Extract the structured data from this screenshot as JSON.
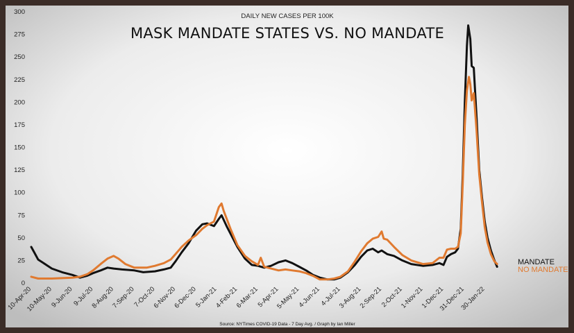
{
  "chart_data": {
    "type": "line",
    "subtitle": "DAILY NEW CASES PER 100K",
    "title": "MASK MANDATE STATES VS. NO MANDATE",
    "source": "Source: NYTimes COVID-19 Data - 7 Day Avg. / Graph by Ian Miller",
    "ylim": [
      0,
      300
    ],
    "yticks": [
      0,
      25,
      50,
      75,
      100,
      125,
      150,
      175,
      200,
      225,
      250,
      275,
      300
    ],
    "grid": false,
    "legend": "right, at end of lines",
    "x_tick_labels": [
      "10-Apr-20",
      "10-May-20",
      "9-Jun-20",
      "9-Jul-20",
      "8-Aug-20",
      "7-Sep-20",
      "7-Oct-20",
      "6-Nov-20",
      "6-Dec-20",
      "5-Jan-21",
      "4-Feb-21",
      "6-Mar-21",
      "5-Apr-21",
      "5-May-21",
      "4-Jun-21",
      "4-Jul-21",
      "3-Aug-21",
      "2-Sep-21",
      "2-Oct-21",
      "1-Nov-21",
      "1-Dec-21",
      "31-Dec-21",
      "30-Jan-22"
    ],
    "series": [
      {
        "name": "MANDATE",
        "color": "#111111",
        "points": [
          [
            "2020-04-10",
            40
          ],
          [
            "2020-04-15",
            33
          ],
          [
            "2020-04-20",
            26
          ],
          [
            "2020-04-28",
            22
          ],
          [
            "2020-05-10",
            16
          ],
          [
            "2020-05-25",
            12
          ],
          [
            "2020-06-09",
            9
          ],
          [
            "2020-06-20",
            6
          ],
          [
            "2020-06-30",
            8
          ],
          [
            "2020-07-09",
            11
          ],
          [
            "2020-07-20",
            14
          ],
          [
            "2020-07-30",
            17
          ],
          [
            "2020-08-08",
            16
          ],
          [
            "2020-08-20",
            15
          ],
          [
            "2020-09-07",
            14
          ],
          [
            "2020-09-20",
            12
          ],
          [
            "2020-10-07",
            13
          ],
          [
            "2020-10-20",
            15
          ],
          [
            "2020-10-30",
            17
          ],
          [
            "2020-11-06",
            24
          ],
          [
            "2020-11-15",
            34
          ],
          [
            "2020-11-25",
            44
          ],
          [
            "2020-12-06",
            58
          ],
          [
            "2020-12-15",
            65
          ],
          [
            "2020-12-22",
            66
          ],
          [
            "2021-01-01",
            63
          ],
          [
            "2021-01-08",
            71
          ],
          [
            "2021-01-12",
            75
          ],
          [
            "2021-01-20",
            62
          ],
          [
            "2021-02-04",
            40
          ],
          [
            "2021-02-15",
            27
          ],
          [
            "2021-02-25",
            20
          ],
          [
            "2021-03-06",
            19
          ],
          [
            "2021-03-15",
            17
          ],
          [
            "2021-03-25",
            19
          ],
          [
            "2021-04-05",
            23
          ],
          [
            "2021-04-15",
            25
          ],
          [
            "2021-04-25",
            22
          ],
          [
            "2021-05-05",
            18
          ],
          [
            "2021-05-15",
            14
          ],
          [
            "2021-05-25",
            9
          ],
          [
            "2021-06-04",
            6
          ],
          [
            "2021-06-15",
            4
          ],
          [
            "2021-06-25",
            4
          ],
          [
            "2021-07-04",
            6
          ],
          [
            "2021-07-15",
            12
          ],
          [
            "2021-07-25",
            20
          ],
          [
            "2021-08-03",
            29
          ],
          [
            "2021-08-12",
            36
          ],
          [
            "2021-08-20",
            38
          ],
          [
            "2021-08-28",
            34
          ],
          [
            "2021-09-02",
            36
          ],
          [
            "2021-09-10",
            32
          ],
          [
            "2021-09-20",
            30
          ],
          [
            "2021-10-02",
            25
          ],
          [
            "2021-10-15",
            21
          ],
          [
            "2021-11-01",
            19
          ],
          [
            "2021-11-15",
            20
          ],
          [
            "2021-11-25",
            22
          ],
          [
            "2021-12-01",
            20
          ],
          [
            "2021-12-06",
            29
          ],
          [
            "2021-12-12",
            32
          ],
          [
            "2021-12-18",
            34
          ],
          [
            "2021-12-22",
            38
          ],
          [
            "2021-12-26",
            60
          ],
          [
            "2021-12-29",
            120
          ],
          [
            "2022-01-01",
            200
          ],
          [
            "2022-01-04",
            262
          ],
          [
            "2022-01-06",
            285
          ],
          [
            "2022-01-09",
            270
          ],
          [
            "2022-01-11",
            240
          ],
          [
            "2022-01-14",
            238
          ],
          [
            "2022-01-18",
            185
          ],
          [
            "2022-01-22",
            125
          ],
          [
            "2022-01-26",
            95
          ],
          [
            "2022-01-30",
            68
          ],
          [
            "2022-02-03",
            50
          ],
          [
            "2022-02-08",
            36
          ],
          [
            "2022-02-13",
            25
          ],
          [
            "2022-02-17",
            18
          ]
        ]
      },
      {
        "name": "NO MANDATE",
        "color": "#e07a30",
        "points": [
          [
            "2020-04-10",
            7
          ],
          [
            "2020-04-20",
            5
          ],
          [
            "2020-05-10",
            5
          ],
          [
            "2020-06-09",
            6
          ],
          [
            "2020-06-20",
            7
          ],
          [
            "2020-07-01",
            10
          ],
          [
            "2020-07-09",
            14
          ],
          [
            "2020-07-20",
            21
          ],
          [
            "2020-07-30",
            27
          ],
          [
            "2020-08-08",
            30
          ],
          [
            "2020-08-15",
            27
          ],
          [
            "2020-08-25",
            21
          ],
          [
            "2020-09-07",
            17
          ],
          [
            "2020-09-15",
            17
          ],
          [
            "2020-09-25",
            17
          ],
          [
            "2020-10-07",
            19
          ],
          [
            "2020-10-20",
            22
          ],
          [
            "2020-10-30",
            26
          ],
          [
            "2020-11-06",
            32
          ],
          [
            "2020-11-15",
            40
          ],
          [
            "2020-11-25",
            47
          ],
          [
            "2020-12-06",
            53
          ],
          [
            "2020-12-15",
            60
          ],
          [
            "2020-12-22",
            64
          ],
          [
            "2021-01-01",
            68
          ],
          [
            "2021-01-08",
            84
          ],
          [
            "2021-01-12",
            88
          ],
          [
            "2021-01-15",
            80
          ],
          [
            "2021-01-25",
            60
          ],
          [
            "2021-02-04",
            42
          ],
          [
            "2021-02-15",
            30
          ],
          [
            "2021-02-25",
            24
          ],
          [
            "2021-03-06",
            20
          ],
          [
            "2021-03-10",
            28
          ],
          [
            "2021-03-15",
            18
          ],
          [
            "2021-03-25",
            16
          ],
          [
            "2021-04-05",
            14
          ],
          [
            "2021-04-15",
            15
          ],
          [
            "2021-04-25",
            14
          ],
          [
            "2021-05-05",
            13
          ],
          [
            "2021-05-15",
            11
          ],
          [
            "2021-05-25",
            8
          ],
          [
            "2021-06-04",
            4
          ],
          [
            "2021-06-15",
            4
          ],
          [
            "2021-06-25",
            5
          ],
          [
            "2021-07-04",
            7
          ],
          [
            "2021-07-15",
            13
          ],
          [
            "2021-07-25",
            24
          ],
          [
            "2021-08-03",
            35
          ],
          [
            "2021-08-12",
            44
          ],
          [
            "2021-08-20",
            49
          ],
          [
            "2021-08-28",
            51
          ],
          [
            "2021-09-02",
            57
          ],
          [
            "2021-09-05",
            49
          ],
          [
            "2021-09-10",
            48
          ],
          [
            "2021-09-20",
            40
          ],
          [
            "2021-10-02",
            31
          ],
          [
            "2021-10-15",
            25
          ],
          [
            "2021-11-01",
            21
          ],
          [
            "2021-11-15",
            22
          ],
          [
            "2021-11-25",
            28
          ],
          [
            "2021-12-01",
            28
          ],
          [
            "2021-12-06",
            37
          ],
          [
            "2021-12-12",
            38
          ],
          [
            "2021-12-18",
            38
          ],
          [
            "2021-12-22",
            40
          ],
          [
            "2021-12-26",
            55
          ],
          [
            "2021-12-29",
            110
          ],
          [
            "2022-01-01",
            175
          ],
          [
            "2022-01-04",
            213
          ],
          [
            "2022-01-07",
            228
          ],
          [
            "2022-01-09",
            220
          ],
          [
            "2022-01-11",
            202
          ],
          [
            "2022-01-14",
            210
          ],
          [
            "2022-01-18",
            170
          ],
          [
            "2022-01-22",
            120
          ],
          [
            "2022-01-26",
            90
          ],
          [
            "2022-01-30",
            62
          ],
          [
            "2022-02-03",
            45
          ],
          [
            "2022-02-08",
            32
          ],
          [
            "2022-02-13",
            24
          ],
          [
            "2022-02-17",
            21
          ]
        ]
      }
    ]
  }
}
